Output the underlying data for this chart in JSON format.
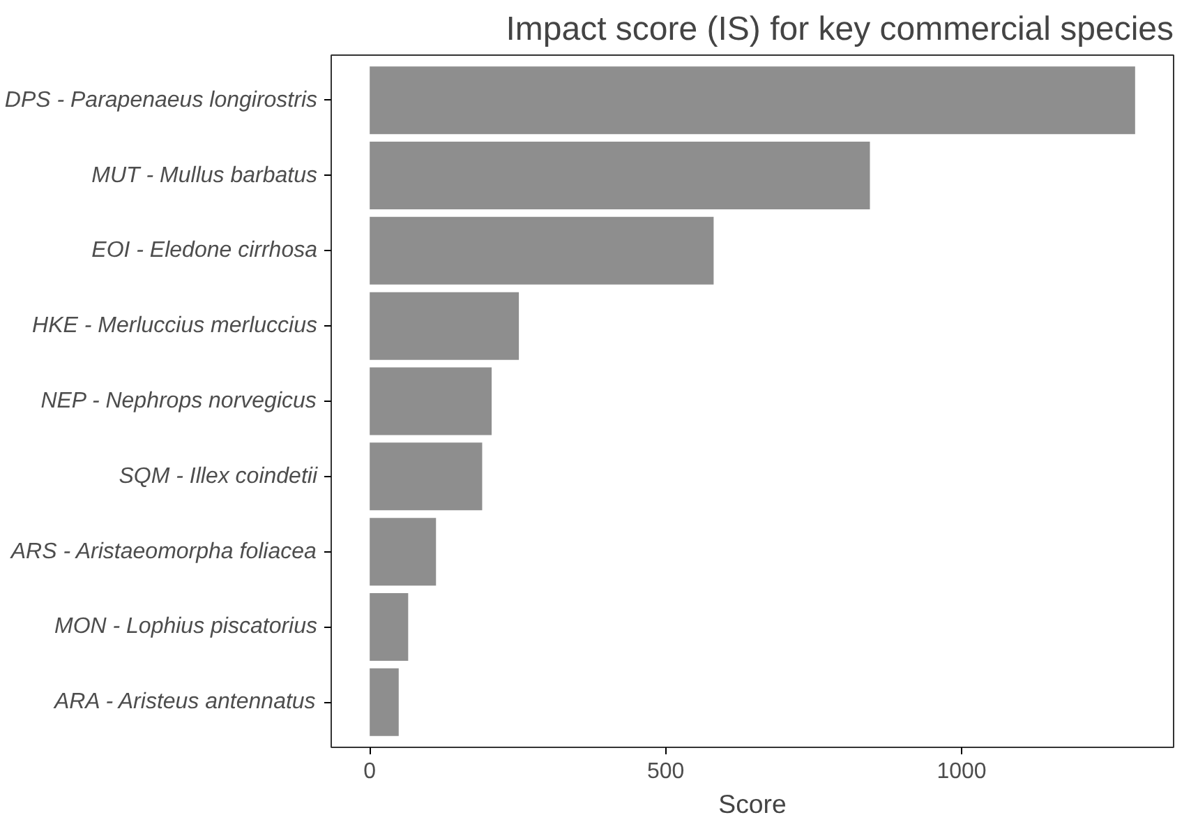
{
  "chart_data": {
    "type": "bar",
    "orientation": "horizontal",
    "title": "Impact score (IS) for key commercial species",
    "xlabel": "Score",
    "categories": [
      "DPS - Parapenaeus longirostris",
      "MUT - Mullus barbatus",
      "EOI - Eledone cirrhosa",
      "HKE - Merluccius merluccius",
      "NEP - Nephrops norvegicus",
      "SQM - Illex coindetii",
      "ARS - Aristaeomorpha foliacea",
      "MON - Lophius piscatorius",
      "ARA - Aristeus antennatus"
    ],
    "values": [
      1293,
      845,
      581,
      252,
      206,
      190,
      112,
      65,
      49
    ],
    "color": "#8e8e8e",
    "xlim": [
      -65,
      1358
    ],
    "xticks": [
      0,
      500,
      1000
    ],
    "grid": false
  }
}
